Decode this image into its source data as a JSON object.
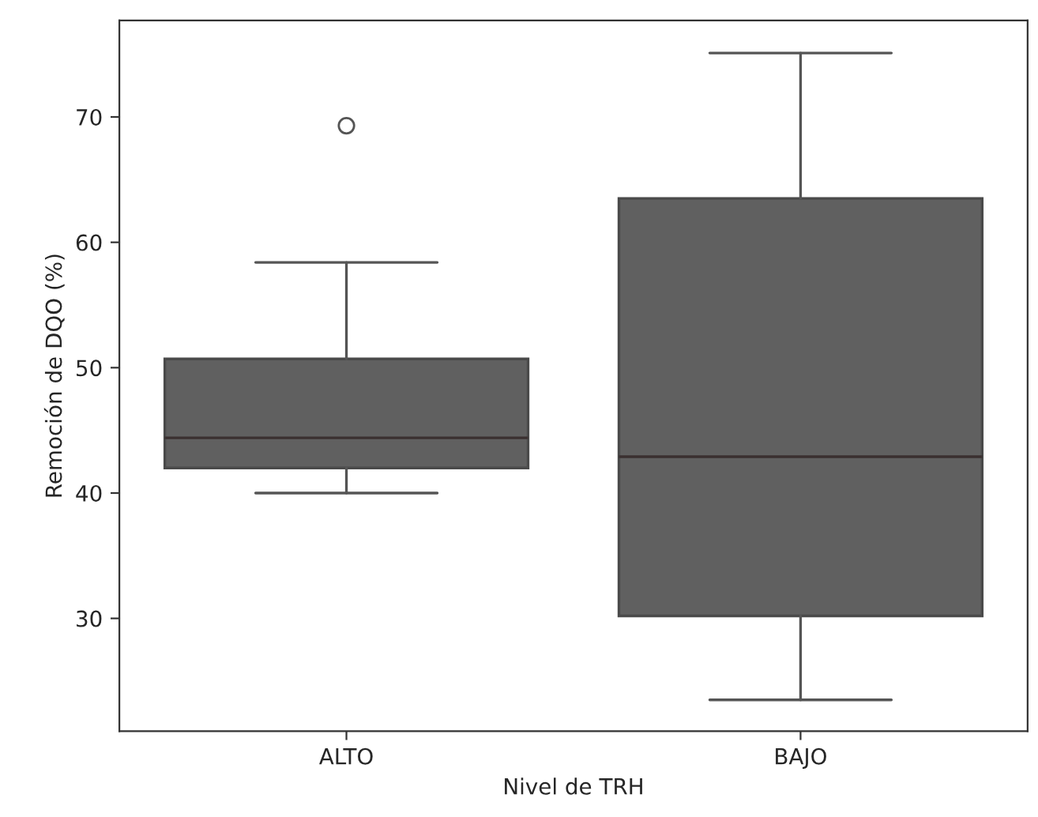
{
  "chart_data": {
    "type": "box",
    "xlabel": "Nivel de TRH",
    "ylabel": "Remoción de DQO (%)",
    "categories": [
      "ALTO",
      "BAJO"
    ],
    "series": [
      {
        "color": "#606060",
        "boxes": [
          {
            "low": 40.0,
            "q1": 42.0,
            "median": 44.4,
            "q3": 50.7,
            "high": 58.4,
            "outliers": [
              69.3
            ]
          },
          {
            "low": 23.5,
            "q1": 30.2,
            "median": 42.9,
            "q3": 63.5,
            "high": 75.1
          }
        ]
      }
    ],
    "ylim": [
      21.0,
      77.7
    ],
    "yticks": [
      30,
      40,
      50,
      60,
      70
    ],
    "grid": false,
    "legend": false
  }
}
